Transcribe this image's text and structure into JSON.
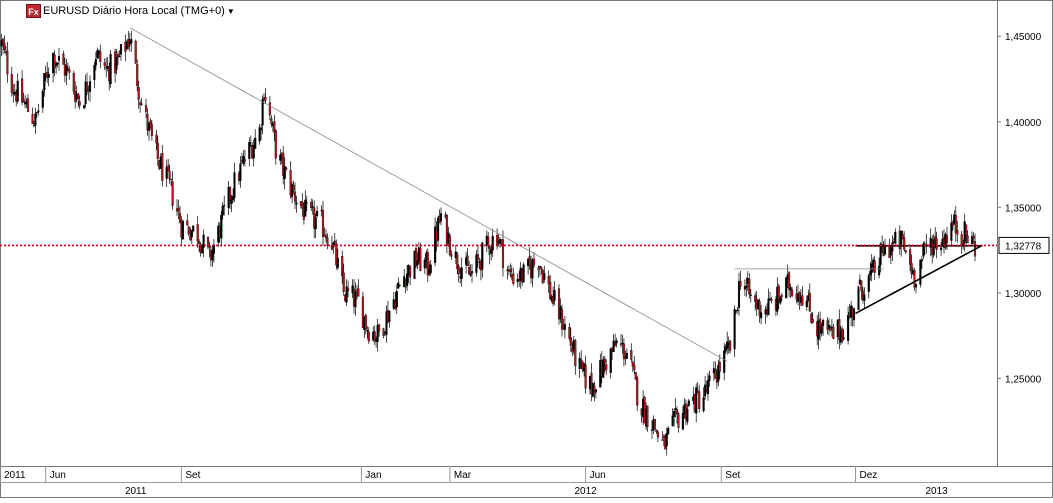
{
  "header": {
    "badge": "Fx",
    "title": "EURUSD Diário Hora Local (TMG+0)",
    "dropdown_icon": "chevron-down-icon"
  },
  "colors": {
    "up_candle": "#000000",
    "down_candle": "#b1141c",
    "current_price_line": "#c8001e",
    "price_label_bg": "#ffffff"
  },
  "chart_data": {
    "type": "candlestick",
    "title": "EURUSD Diário Hora Local (TMG+0)",
    "xlabel": "",
    "ylabel": "",
    "grid": false,
    "ylim": [
      1.2,
      1.47
    ],
    "yticks": [
      {
        "value": 1.45,
        "label": "1,45000"
      },
      {
        "value": 1.4,
        "label": "1,40000"
      },
      {
        "value": 1.35,
        "label": "1,35000"
      },
      {
        "value": 1.3,
        "label": "1,30000"
      },
      {
        "value": 1.25,
        "label": "1,25000"
      }
    ],
    "current_price": {
      "value": 1.32778,
      "label": "1,32778"
    },
    "time_range": [
      "2011-05-01",
      "2013-02-20"
    ],
    "month_ticks": [
      {
        "date": "2011-05-01",
        "label": "2011"
      },
      {
        "date": "2011-06-01",
        "label": "Jun"
      },
      {
        "date": "2011-09-01",
        "label": "Set"
      },
      {
        "date": "2012-01-01",
        "label": "Jan"
      },
      {
        "date": "2012-03-01",
        "label": "Mar"
      },
      {
        "date": "2012-06-01",
        "label": "Jun"
      },
      {
        "date": "2012-09-01",
        "label": "Set"
      },
      {
        "date": "2012-12-01",
        "label": "Dez"
      }
    ],
    "year_ticks": [
      {
        "date": "2011-08-01",
        "label": "2011"
      },
      {
        "date": "2012-06-01",
        "label": "2012"
      },
      {
        "date": "2013-01-25",
        "label": "2013"
      }
    ],
    "price_path": [
      [
        "2011-05-02",
        1.445
      ],
      [
        "2011-05-10",
        1.42
      ],
      [
        "2011-05-18",
        1.41
      ],
      [
        "2011-05-25",
        1.4
      ],
      [
        "2011-06-05",
        1.44
      ],
      [
        "2011-06-15",
        1.43
      ],
      [
        "2011-06-25",
        1.41
      ],
      [
        "2011-07-05",
        1.44
      ],
      [
        "2011-07-12",
        1.43
      ],
      [
        "2011-07-20",
        1.435
      ],
      [
        "2011-07-28",
        1.45
      ],
      [
        "2011-08-05",
        1.41
      ],
      [
        "2011-08-15",
        1.38
      ],
      [
        "2011-08-25",
        1.36
      ],
      [
        "2011-09-01",
        1.34
      ],
      [
        "2011-09-12",
        1.335
      ],
      [
        "2011-09-20",
        1.32
      ],
      [
        "2011-09-26",
        1.335
      ],
      [
        "2011-10-05",
        1.36
      ],
      [
        "2011-10-15",
        1.38
      ],
      [
        "2011-10-24",
        1.395
      ],
      [
        "2011-10-27",
        1.42
      ],
      [
        "2011-11-05",
        1.38
      ],
      [
        "2011-11-15",
        1.36
      ],
      [
        "2011-11-25",
        1.345
      ],
      [
        "2011-12-05",
        1.34
      ],
      [
        "2011-12-12",
        1.33
      ],
      [
        "2011-12-20",
        1.3
      ],
      [
        "2011-12-30",
        1.295
      ],
      [
        "2012-01-05",
        1.28
      ],
      [
        "2012-01-12",
        1.275
      ],
      [
        "2012-01-20",
        1.29
      ],
      [
        "2012-01-30",
        1.31
      ],
      [
        "2012-02-08",
        1.32
      ],
      [
        "2012-02-15",
        1.315
      ],
      [
        "2012-02-24",
        1.345
      ],
      [
        "2012-03-05",
        1.32
      ],
      [
        "2012-03-15",
        1.31
      ],
      [
        "2012-03-25",
        1.325
      ],
      [
        "2012-04-02",
        1.335
      ],
      [
        "2012-04-10",
        1.31
      ],
      [
        "2012-04-20",
        1.31
      ],
      [
        "2012-04-30",
        1.32
      ],
      [
        "2012-05-08",
        1.3
      ],
      [
        "2012-05-18",
        1.28
      ],
      [
        "2012-05-28",
        1.255
      ],
      [
        "2012-06-05",
        1.245
      ],
      [
        "2012-06-15",
        1.26
      ],
      [
        "2012-06-22",
        1.27
      ],
      [
        "2012-06-29",
        1.265
      ],
      [
        "2012-07-08",
        1.235
      ],
      [
        "2012-07-16",
        1.225
      ],
      [
        "2012-07-24",
        1.21
      ],
      [
        "2012-08-01",
        1.225
      ],
      [
        "2012-08-10",
        1.235
      ],
      [
        "2012-08-20",
        1.24
      ],
      [
        "2012-08-30",
        1.255
      ],
      [
        "2012-09-08",
        1.27
      ],
      [
        "2012-09-14",
        1.31
      ],
      [
        "2012-09-22",
        1.295
      ],
      [
        "2012-09-30",
        1.29
      ],
      [
        "2012-10-08",
        1.295
      ],
      [
        "2012-10-17",
        1.305
      ],
      [
        "2012-10-26",
        1.3
      ],
      [
        "2012-11-05",
        1.28
      ],
      [
        "2012-11-15",
        1.275
      ],
      [
        "2012-11-24",
        1.28
      ],
      [
        "2012-12-03",
        1.3
      ],
      [
        "2012-12-12",
        1.31
      ],
      [
        "2012-12-20",
        1.325
      ],
      [
        "2013-01-01",
        1.33
      ],
      [
        "2013-01-10",
        1.31
      ],
      [
        "2013-01-20",
        1.33
      ],
      [
        "2013-01-28",
        1.33
      ],
      [
        "2013-02-05",
        1.34
      ],
      [
        "2013-02-12",
        1.335
      ],
      [
        "2013-02-20",
        1.3278
      ]
    ],
    "annotations": [
      {
        "name": "downtrend-line",
        "from": [
          "2011-07-28",
          1.455
        ],
        "to": [
          "2012-09-05",
          1.26
        ]
      },
      {
        "name": "horizontal-support-line",
        "from": [
          "2012-09-10",
          1.314
        ],
        "to": [
          "2012-12-20",
          1.314
        ]
      },
      {
        "name": "ascending-trend-line",
        "from": [
          "2012-12-01",
          1.288
        ],
        "to": [
          "2013-02-25",
          1.3278
        ]
      },
      {
        "name": "horizontal-neckline",
        "from": [
          "2012-12-01",
          1.3275
        ],
        "to": [
          "2013-02-25",
          1.3275
        ]
      }
    ]
  }
}
